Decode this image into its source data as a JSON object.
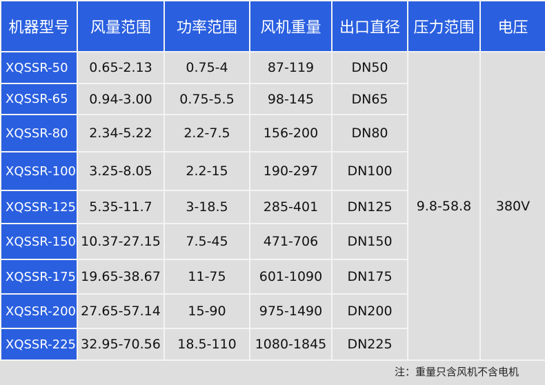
{
  "headers": [
    "机器型号",
    "风量范围",
    "功率范围",
    "风机重量",
    "出口直径",
    "压力范围",
    "电压"
  ],
  "rows": [
    [
      "XQSSR-50",
      "0.65-2.13",
      "0.75-4",
      "87-119",
      "DN50"
    ],
    [
      "XQSSR-65",
      "0.94-3.00",
      "0.75-5.5",
      "98-145",
      "DN65"
    ],
    [
      "XQSSR-80",
      "2.34-5.22",
      "2.2-7.5",
      "156-200",
      "DN80"
    ],
    [
      "XQSSR-100",
      "3.25-8.05",
      "2.2-15",
      "190-297",
      "DN100"
    ],
    [
      "XQSSR-125",
      "5.35-11.7",
      "3-18.5",
      "285-401",
      "DN125"
    ],
    [
      "XQSSR-150",
      "10.37-27.15",
      "7.5-45",
      "471-706",
      "DN150"
    ],
    [
      "XQSSR-175",
      "19.65-38.67",
      "11-75",
      "601-1090",
      "DN175"
    ],
    [
      "XQSSR-200",
      "27.65-57.14",
      "15-90",
      "975-1490",
      "DN200"
    ],
    [
      "XQSSR-225",
      "32.95-70.56",
      "18.5-110",
      "1080-1845",
      "DN225"
    ]
  ],
  "pressure_range": "9.8-58.8",
  "voltage": "380V",
  "note": "注：重量只含风机不含电机",
  "colors": {
    "header_bg": "#2a5fdf",
    "cell_bg": "#dedede"
  }
}
